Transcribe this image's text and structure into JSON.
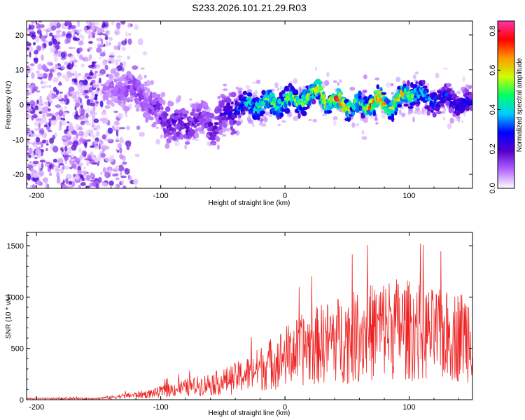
{
  "chart_data": [
    {
      "type": "heatmap",
      "title": "S233.2026.101.21.29.R03",
      "xlabel": "Height of straight line (km)",
      "ylabel": "Frequency (Hz)",
      "xlim": [
        -208,
        151
      ],
      "ylim": [
        -24,
        24
      ],
      "xticks": [
        -200,
        -100,
        0,
        100
      ],
      "xtick_labels": [
        "-200",
        "-100",
        "0",
        "100"
      ],
      "yticks": [
        -20,
        -10,
        0,
        10,
        20
      ],
      "ytick_labels": [
        "-20",
        "-10",
        "0",
        "10",
        "20"
      ],
      "colorbar": {
        "label": "Normalized spectral amplitude",
        "range": [
          0,
          0.85
        ],
        "ticks": [
          0.0,
          0.2,
          0.4,
          0.6,
          0.8
        ],
        "tick_labels": [
          "0.0",
          "0.2",
          "0.4",
          "0.6",
          "0.8"
        ],
        "colors": [
          "#ffffff",
          "#b366ff",
          "#5500cc",
          "#0000ff",
          "#00ccff",
          "#00ff66",
          "#ccff00",
          "#ff9900",
          "#ff0000",
          "#ff33aa"
        ]
      },
      "ridge": {
        "x": [
          -140,
          -125,
          -112,
          -100,
          -92,
          -85,
          -75,
          -65,
          -58,
          -50,
          -40,
          -30,
          -20,
          -10,
          0,
          10,
          20,
          28,
          35,
          45,
          55,
          65,
          75,
          85,
          95,
          105,
          115,
          125,
          135,
          145,
          150
        ],
        "y": [
          4,
          5,
          1.5,
          -3,
          -5,
          -6,
          -5,
          -4,
          -6,
          -3,
          -1,
          0,
          0,
          0.5,
          1,
          1.5,
          2,
          5,
          0,
          1,
          -1,
          0,
          1,
          0,
          2,
          4,
          1,
          2,
          1,
          0,
          0
        ],
        "peak_amplitude": [
          0.1,
          0.15,
          0.15,
          0.18,
          0.2,
          0.22,
          0.2,
          0.18,
          0.2,
          0.22,
          0.3,
          0.45,
          0.5,
          0.55,
          0.55,
          0.6,
          0.55,
          0.7,
          0.6,
          0.85,
          0.5,
          0.6,
          0.85,
          0.6,
          0.7,
          0.5,
          0.4,
          0.35,
          0.3,
          0.3,
          0.3
        ]
      },
      "noise_region_x": [
        -208,
        -110
      ]
    },
    {
      "type": "line",
      "xlabel": "Height of straight line (km)",
      "ylabel": "SNR (10 * v/v)",
      "xlim": [
        -208,
        151
      ],
      "ylim": [
        0,
        1630
      ],
      "xticks": [
        -200,
        -100,
        0,
        100
      ],
      "xtick_labels": [
        "-200",
        "-100",
        "0",
        "100"
      ],
      "yticks": [
        0,
        500,
        1000,
        1500
      ],
      "ytick_labels": [
        "0",
        "500",
        "1000",
        "1500"
      ],
      "color": "#ee2222",
      "envelope": {
        "x": [
          -208,
          -150,
          -130,
          -110,
          -90,
          -70,
          -50,
          -30,
          -20,
          -10,
          0,
          10,
          20,
          30,
          40,
          50,
          60,
          70,
          80,
          90,
          100,
          110,
          120,
          130,
          140,
          150
        ],
        "y": [
          18,
          22,
          60,
          95,
          170,
          230,
          300,
          420,
          520,
          620,
          720,
          800,
          880,
          940,
          1000,
          1030,
          1070,
          1140,
          1190,
          1200,
          1170,
          1120,
          1080,
          1060,
          1070,
          1100
        ]
      }
    }
  ]
}
